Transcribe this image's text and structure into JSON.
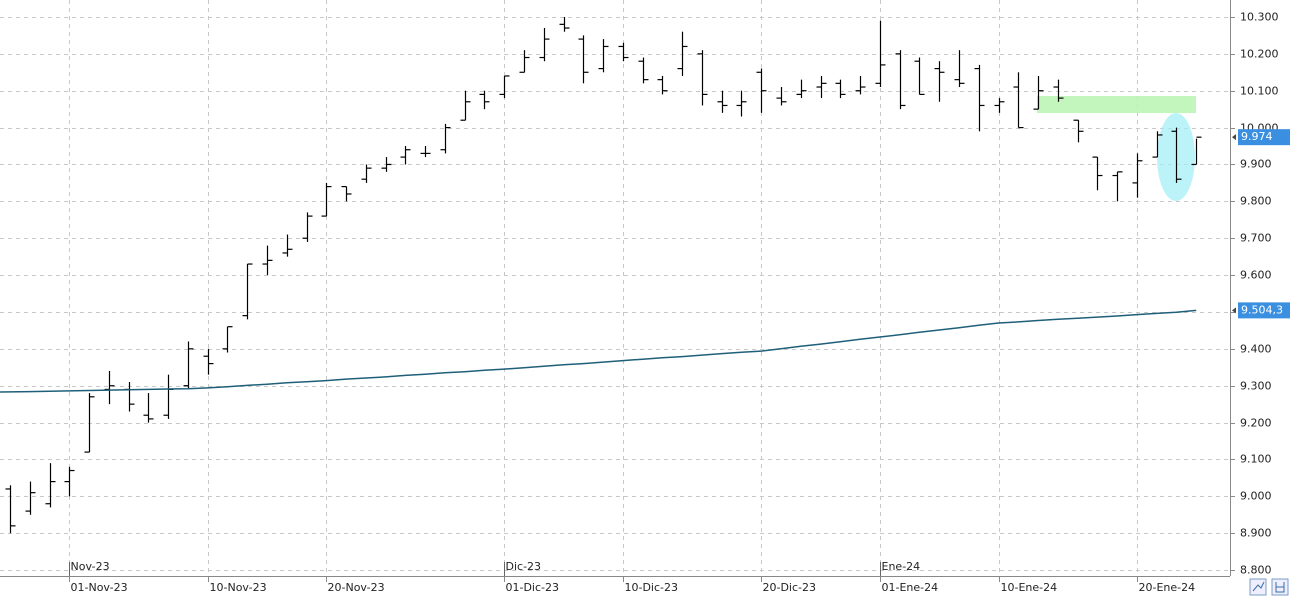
{
  "chart_data": {
    "type": "ohlc",
    "ylim": [
      8784,
      10346
    ],
    "yticks": [
      {
        "value": 8800,
        "label": "8.800"
      },
      {
        "value": 8900,
        "label": "8.900"
      },
      {
        "value": 9000,
        "label": "9.000"
      },
      {
        "value": 9100,
        "label": "9.100"
      },
      {
        "value": 9200,
        "label": "9.200"
      },
      {
        "value": 9300,
        "label": "9.300"
      },
      {
        "value": 9400,
        "label": "9.400"
      },
      {
        "value": 9500,
        "label": "9.500"
      },
      {
        "value": 9600,
        "label": "9.600"
      },
      {
        "value": 9700,
        "label": "9.700"
      },
      {
        "value": 9800,
        "label": "9.800"
      },
      {
        "value": 9900,
        "label": "9.900"
      },
      {
        "value": 10000,
        "label": "10.000"
      },
      {
        "value": 10100,
        "label": "10.100"
      },
      {
        "value": 10200,
        "label": "10.200"
      },
      {
        "value": 10300,
        "label": "10.300"
      }
    ],
    "grid": true,
    "categories": [
      null,
      null,
      null,
      "01-Nov-23",
      null,
      null,
      null,
      null,
      null,
      null,
      "10-Nov-23",
      null,
      null,
      null,
      null,
      null,
      "20-Nov-23",
      null,
      null,
      null,
      null,
      null,
      null,
      null,
      null,
      "01-Dic-23",
      null,
      null,
      null,
      null,
      null,
      "10-Dic-23",
      null,
      null,
      null,
      null,
      null,
      null,
      "20-Dic-23",
      null,
      null,
      null,
      null,
      null,
      "01-Ene-24",
      null,
      null,
      null,
      null,
      null,
      "10-Ene-24",
      null,
      null,
      null,
      null,
      null,
      null,
      "20-Ene-24",
      null,
      null,
      null
    ],
    "period_labels": [
      {
        "value": "01-Nov-23",
        "label": "Nov-23"
      },
      {
        "value": "01-Dic-23",
        "label": "Dic-23"
      },
      {
        "value": "01-Ene-24",
        "label": "Ene-24"
      }
    ],
    "color": "#000000",
    "open": [
      9020,
      8960,
      8980,
      9040,
      9120,
      9290,
      9290,
      9220,
      9220,
      9300,
      9380,
      9400,
      9490,
      9630,
      9660,
      9700,
      9760,
      9840,
      9860,
      9890,
      9920,
      9930,
      9940,
      10020,
      10090,
      10090,
      10150,
      10190,
      10280,
      10240,
      10160,
      10220,
      10180,
      10130,
      10160,
      10200,
      10070,
      10060,
      10150,
      10080,
      10090,
      10110,
      10120,
      10100,
      10120,
      10200,
      10180,
      10160,
      10130,
      10160,
      10060,
      10110,
      10050,
      10110,
      10020,
      9920,
      9870,
      9850,
      9920,
      9990,
      9900
    ],
    "high": [
      9030,
      9040,
      9090,
      9080,
      9280,
      9340,
      9310,
      9280,
      9330,
      9420,
      9400,
      9460,
      9630,
      9680,
      9710,
      9770,
      9850,
      9840,
      9900,
      9920,
      9950,
      9950,
      10010,
      10100,
      10100,
      10140,
      10210,
      10270,
      10300,
      10250,
      10240,
      10230,
      10190,
      10140,
      10260,
      10210,
      10100,
      10100,
      10160,
      10110,
      10130,
      10140,
      10130,
      10140,
      10290,
      10210,
      10190,
      10180,
      10210,
      10170,
      10080,
      10150,
      10140,
      10130,
      10020,
      9920,
      9880,
      9930,
      9990,
      10000,
      9970
    ],
    "low": [
      8900,
      8950,
      8970,
      9000,
      9120,
      9250,
      9230,
      9200,
      9210,
      9290,
      9330,
      9390,
      9480,
      9600,
      9650,
      9690,
      9760,
      9800,
      9850,
      9880,
      9900,
      9920,
      9930,
      10020,
      10050,
      10080,
      10150,
      10180,
      10260,
      10120,
      10150,
      10180,
      10120,
      10090,
      10140,
      10060,
      10040,
      10030,
      10040,
      10060,
      10080,
      10080,
      10080,
      10090,
      10110,
      10050,
      10090,
      10070,
      10110,
      9990,
      10040,
      10000,
      10050,
      10070,
      9960,
      9830,
      9800,
      9810,
      9920,
      9850,
      9900
    ],
    "close": [
      8920,
      9010,
      9040,
      9070,
      9270,
      9300,
      9250,
      9210,
      9290,
      9400,
      9360,
      9460,
      9630,
      9640,
      9670,
      9760,
      9840,
      9820,
      9890,
      9900,
      9940,
      9930,
      10000,
      10070,
      10070,
      10140,
      10190,
      10240,
      10270,
      10150,
      10220,
      10190,
      10130,
      10100,
      10220,
      10090,
      10060,
      10070,
      10100,
      10070,
      10100,
      10120,
      10090,
      10110,
      10170,
      10060,
      10090,
      10150,
      10120,
      10060,
      10070,
      10000,
      10100,
      10080,
      9990,
      9870,
      9880,
      9910,
      9980,
      9860,
      9974
    ],
    "moving_average": {
      "color": "#1f5f7a",
      "values": [
        9283,
        9284,
        9285,
        9286,
        9287,
        9288,
        9289,
        9290,
        9291,
        9292,
        9294,
        9297,
        9301,
        9304,
        9308,
        9311,
        9314,
        9318,
        9321,
        9324,
        9328,
        9331,
        9335,
        9338,
        9342,
        9345,
        9349,
        9353,
        9357,
        9360,
        9364,
        9368,
        9372,
        9376,
        9379,
        9383,
        9387,
        9391,
        9394,
        9400,
        9407,
        9413,
        9419,
        9426,
        9432,
        9438,
        9445,
        9451,
        9457,
        9464,
        9470,
        9473,
        9477,
        9480,
        9483,
        9486,
        9489,
        9493,
        9496,
        9499,
        9504.3
      ]
    },
    "price_markers": [
      {
        "value": 9974,
        "label": "9.974"
      },
      {
        "value": 9504.3,
        "label": "9.504,3"
      }
    ]
  }
}
